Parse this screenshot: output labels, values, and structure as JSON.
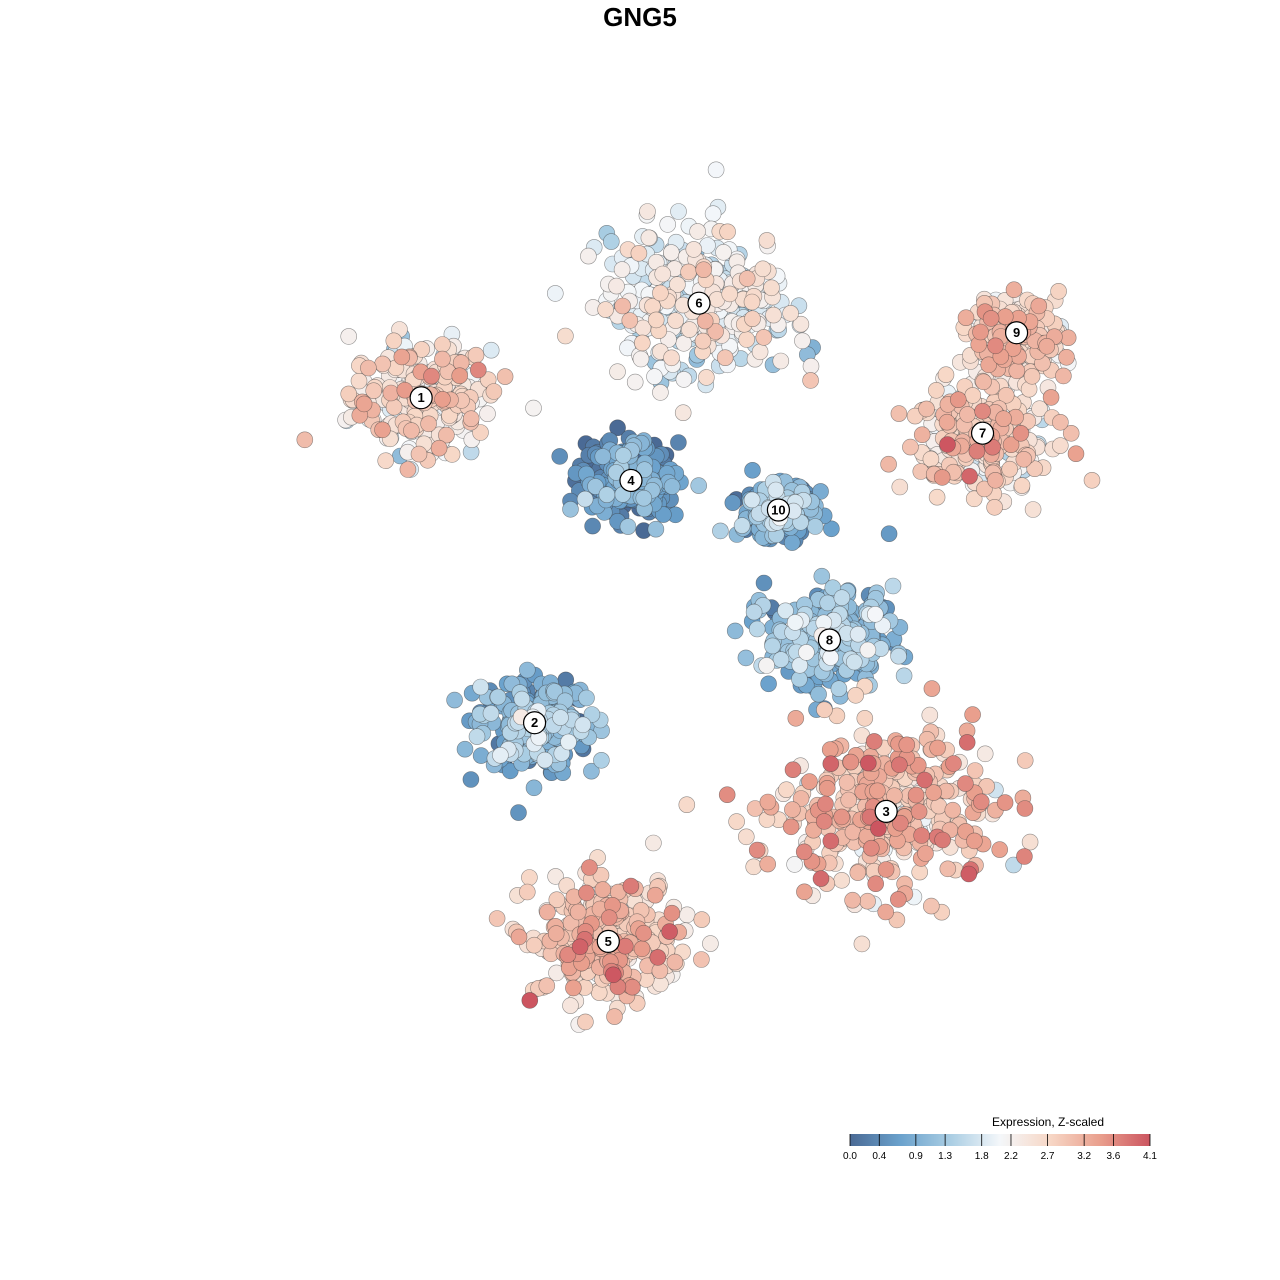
{
  "chart_data": {
    "type": "scatter",
    "title": "GNG5",
    "xlabel": "",
    "ylabel": "",
    "grid": false,
    "legend_placement": "bottom-right",
    "colorbar": {
      "title": "Expression, Z-scaled",
      "min": 0.0,
      "max": 4.1,
      "ticks": [
        "0.0",
        "0.4",
        "0.9",
        "1.3",
        "1.8",
        "2.2",
        "2.7",
        "3.2",
        "3.6",
        "4.1"
      ],
      "colors": [
        "#4a6a95",
        "#6aa1cc",
        "#a9cde3",
        "#f4f7fa",
        "#f7d7c6",
        "#e99f8d",
        "#cc5560"
      ]
    },
    "clusters": [
      {
        "label": "1",
        "x": -20.5,
        "y": 19.0,
        "level": 2.4,
        "spread": 5.5
      },
      {
        "label": "2",
        "x": -10.5,
        "y": -8.5,
        "level": 0.9,
        "spread": 4.5
      },
      {
        "label": "3",
        "x": 20.5,
        "y": -16.0,
        "level": 2.9,
        "spread": 8.5
      },
      {
        "label": "4",
        "x": -2.0,
        "y": 12.0,
        "level": 0.45,
        "spread": 3.8
      },
      {
        "label": "5",
        "x": -4.0,
        "y": -27.0,
        "level": 2.8,
        "spread": 6.0
      },
      {
        "label": "6",
        "x": 4.0,
        "y": 27.0,
        "level": 2.0,
        "spread": 7.5
      },
      {
        "label": "7",
        "x": 29.0,
        "y": 16.0,
        "level": 2.6,
        "spread": 5.5
      },
      {
        "label": "8",
        "x": 15.5,
        "y": -1.5,
        "level": 1.0,
        "spread": 5.0
      },
      {
        "label": "9",
        "x": 32.0,
        "y": 24.5,
        "level": 2.6,
        "spread": 3.5
      },
      {
        "label": "10",
        "x": 11.0,
        "y": 9.5,
        "level": 0.8,
        "spread": 2.8
      }
    ],
    "xlim": [
      -40,
      42
    ],
    "ylim": [
      -40,
      37
    ]
  }
}
